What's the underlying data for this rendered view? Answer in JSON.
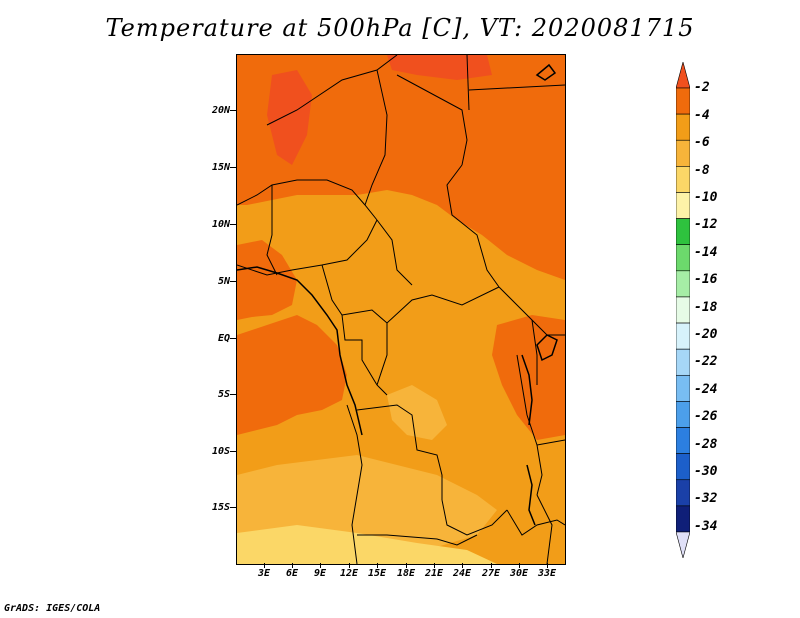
{
  "title": "Temperature at 500hPa [C], VT: 2020081715",
  "credit": "GrADS: IGES/COLA",
  "lat_labels": [
    "20N",
    "15N",
    "10N",
    "5N",
    "EQ",
    "5S",
    "10S",
    "15S"
  ],
  "lon_labels": [
    "3E",
    "6E",
    "9E",
    "12E",
    "15E",
    "18E",
    "21E",
    "24E",
    "27E",
    "30E",
    "33E"
  ],
  "colorbar": {
    "labels": [
      "-2",
      "-4",
      "-6",
      "-8",
      "-10",
      "-12",
      "-14",
      "-16",
      "-18",
      "-20",
      "-22",
      "-24",
      "-26",
      "-28",
      "-30",
      "-32",
      "-34"
    ],
    "colors": [
      "#f0501e",
      "#f06b0c",
      "#f29d18",
      "#f7b43a",
      "#fbd767",
      "#fdf2a8",
      "#2ec23e",
      "#6cd96c",
      "#a6eda6",
      "#e6fbe6",
      "#d7f2fb",
      "#a6d7f7",
      "#78bdf2",
      "#4c9fea",
      "#2c7fe0",
      "#1c5fca",
      "#1a40a8",
      "#0f1f78",
      "#e0e0f8"
    ]
  },
  "colors": {
    "background": "#ffffff",
    "warm_band": "#f06b0c",
    "mid_band": "#f29d18",
    "cool_band": "#f7b43a",
    "coolest_band": "#fbd767",
    "warmest_band": "#f0501e",
    "boundary": "#000000"
  }
}
